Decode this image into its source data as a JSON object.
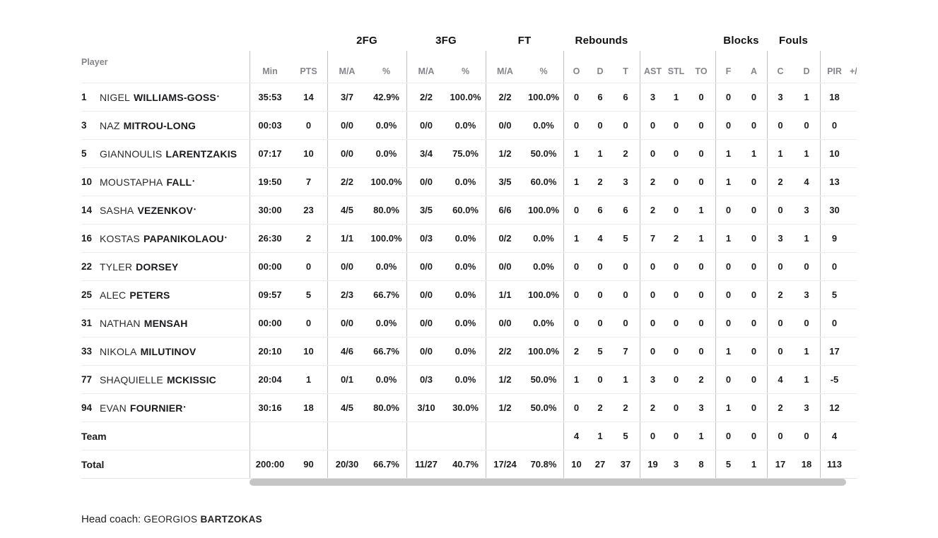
{
  "group_headers": {
    "fg2": "2FG",
    "fg3": "3FG",
    "ft": "FT",
    "rebounds": "Rebounds",
    "blocks": "Blocks",
    "fouls": "Fouls"
  },
  "columns": {
    "player": "Player",
    "min": "Min",
    "pts": "PTS",
    "ma": "M/A",
    "pct": "%",
    "o": "O",
    "d": "D",
    "t": "T",
    "ast": "AST",
    "stl": "STL",
    "to": "TO",
    "f": "F",
    "a": "A",
    "c": "C",
    "d2": "D",
    "pir": "PIR",
    "plus": "+/"
  },
  "starter_mark": "•",
  "players": [
    {
      "num": "1",
      "first": "NIGEL",
      "last": "WILLIAMS-GOSS",
      "starter": true,
      "min": "35:53",
      "pts": "14",
      "fg2_ma": "3/7",
      "fg2_pct": "42.9%",
      "fg3_ma": "2/2",
      "fg3_pct": "100.0%",
      "ft_ma": "2/2",
      "ft_pct": "100.0%",
      "reb_o": "0",
      "reb_d": "6",
      "reb_t": "6",
      "ast": "3",
      "stl": "1",
      "to": "0",
      "blk_f": "0",
      "blk_a": "0",
      "foul_c": "3",
      "foul_d": "1",
      "pir": "18"
    },
    {
      "num": "3",
      "first": "NAZ",
      "last": "MITROU-LONG",
      "starter": false,
      "min": "00:03",
      "pts": "0",
      "fg2_ma": "0/0",
      "fg2_pct": "0.0%",
      "fg3_ma": "0/0",
      "fg3_pct": "0.0%",
      "ft_ma": "0/0",
      "ft_pct": "0.0%",
      "reb_o": "0",
      "reb_d": "0",
      "reb_t": "0",
      "ast": "0",
      "stl": "0",
      "to": "0",
      "blk_f": "0",
      "blk_a": "0",
      "foul_c": "0",
      "foul_d": "0",
      "pir": "0"
    },
    {
      "num": "5",
      "first": "GIANNOULIS",
      "last": "LARENTZAKIS",
      "starter": false,
      "min": "07:17",
      "pts": "10",
      "fg2_ma": "0/0",
      "fg2_pct": "0.0%",
      "fg3_ma": "3/4",
      "fg3_pct": "75.0%",
      "ft_ma": "1/2",
      "ft_pct": "50.0%",
      "reb_o": "1",
      "reb_d": "1",
      "reb_t": "2",
      "ast": "0",
      "stl": "0",
      "to": "0",
      "blk_f": "1",
      "blk_a": "1",
      "foul_c": "1",
      "foul_d": "1",
      "pir": "10"
    },
    {
      "num": "10",
      "first": "MOUSTAPHA",
      "last": "FALL",
      "starter": true,
      "min": "19:50",
      "pts": "7",
      "fg2_ma": "2/2",
      "fg2_pct": "100.0%",
      "fg3_ma": "0/0",
      "fg3_pct": "0.0%",
      "ft_ma": "3/5",
      "ft_pct": "60.0%",
      "reb_o": "1",
      "reb_d": "2",
      "reb_t": "3",
      "ast": "2",
      "stl": "0",
      "to": "0",
      "blk_f": "1",
      "blk_a": "0",
      "foul_c": "2",
      "foul_d": "4",
      "pir": "13"
    },
    {
      "num": "14",
      "first": "SASHA",
      "last": "VEZENKOV",
      "starter": true,
      "min": "30:00",
      "pts": "23",
      "fg2_ma": "4/5",
      "fg2_pct": "80.0%",
      "fg3_ma": "3/5",
      "fg3_pct": "60.0%",
      "ft_ma": "6/6",
      "ft_pct": "100.0%",
      "reb_o": "0",
      "reb_d": "6",
      "reb_t": "6",
      "ast": "2",
      "stl": "0",
      "to": "1",
      "blk_f": "0",
      "blk_a": "0",
      "foul_c": "0",
      "foul_d": "3",
      "pir": "30"
    },
    {
      "num": "16",
      "first": "KOSTAS",
      "last": "PAPANIKOLAOU",
      "starter": true,
      "min": "26:30",
      "pts": "2",
      "fg2_ma": "1/1",
      "fg2_pct": "100.0%",
      "fg3_ma": "0/3",
      "fg3_pct": "0.0%",
      "ft_ma": "0/2",
      "ft_pct": "0.0%",
      "reb_o": "1",
      "reb_d": "4",
      "reb_t": "5",
      "ast": "7",
      "stl": "2",
      "to": "1",
      "blk_f": "1",
      "blk_a": "0",
      "foul_c": "3",
      "foul_d": "1",
      "pir": "9"
    },
    {
      "num": "22",
      "first": "TYLER",
      "last": "DORSEY",
      "starter": false,
      "min": "00:00",
      "pts": "0",
      "fg2_ma": "0/0",
      "fg2_pct": "0.0%",
      "fg3_ma": "0/0",
      "fg3_pct": "0.0%",
      "ft_ma": "0/0",
      "ft_pct": "0.0%",
      "reb_o": "0",
      "reb_d": "0",
      "reb_t": "0",
      "ast": "0",
      "stl": "0",
      "to": "0",
      "blk_f": "0",
      "blk_a": "0",
      "foul_c": "0",
      "foul_d": "0",
      "pir": "0"
    },
    {
      "num": "25",
      "first": "ALEC",
      "last": "PETERS",
      "starter": false,
      "min": "09:57",
      "pts": "5",
      "fg2_ma": "2/3",
      "fg2_pct": "66.7%",
      "fg3_ma": "0/0",
      "fg3_pct": "0.0%",
      "ft_ma": "1/1",
      "ft_pct": "100.0%",
      "reb_o": "0",
      "reb_d": "0",
      "reb_t": "0",
      "ast": "0",
      "stl": "0",
      "to": "0",
      "blk_f": "0",
      "blk_a": "0",
      "foul_c": "2",
      "foul_d": "3",
      "pir": "5"
    },
    {
      "num": "31",
      "first": "NATHAN",
      "last": "MENSAH",
      "starter": false,
      "min": "00:00",
      "pts": "0",
      "fg2_ma": "0/0",
      "fg2_pct": "0.0%",
      "fg3_ma": "0/0",
      "fg3_pct": "0.0%",
      "ft_ma": "0/0",
      "ft_pct": "0.0%",
      "reb_o": "0",
      "reb_d": "0",
      "reb_t": "0",
      "ast": "0",
      "stl": "0",
      "to": "0",
      "blk_f": "0",
      "blk_a": "0",
      "foul_c": "0",
      "foul_d": "0",
      "pir": "0"
    },
    {
      "num": "33",
      "first": "NIKOLA",
      "last": "MILUTINOV",
      "starter": false,
      "min": "20:10",
      "pts": "10",
      "fg2_ma": "4/6",
      "fg2_pct": "66.7%",
      "fg3_ma": "0/0",
      "fg3_pct": "0.0%",
      "ft_ma": "2/2",
      "ft_pct": "100.0%",
      "reb_o": "2",
      "reb_d": "5",
      "reb_t": "7",
      "ast": "0",
      "stl": "0",
      "to": "0",
      "blk_f": "1",
      "blk_a": "0",
      "foul_c": "0",
      "foul_d": "1",
      "pir": "17"
    },
    {
      "num": "77",
      "first": "SHAQUIELLE",
      "last": "MCKISSIC",
      "starter": false,
      "min": "20:04",
      "pts": "1",
      "fg2_ma": "0/1",
      "fg2_pct": "0.0%",
      "fg3_ma": "0/3",
      "fg3_pct": "0.0%",
      "ft_ma": "1/2",
      "ft_pct": "50.0%",
      "reb_o": "1",
      "reb_d": "0",
      "reb_t": "1",
      "ast": "3",
      "stl": "0",
      "to": "2",
      "blk_f": "0",
      "blk_a": "0",
      "foul_c": "4",
      "foul_d": "1",
      "pir": "-5"
    },
    {
      "num": "94",
      "first": "EVAN",
      "last": "FOURNIER",
      "starter": true,
      "min": "30:16",
      "pts": "18",
      "fg2_ma": "4/5",
      "fg2_pct": "80.0%",
      "fg3_ma": "3/10",
      "fg3_pct": "30.0%",
      "ft_ma": "1/2",
      "ft_pct": "50.0%",
      "reb_o": "0",
      "reb_d": "2",
      "reb_t": "2",
      "ast": "2",
      "stl": "0",
      "to": "3",
      "blk_f": "1",
      "blk_a": "0",
      "foul_c": "2",
      "foul_d": "3",
      "pir": "12"
    }
  ],
  "team_row": {
    "label": "Team",
    "min": "",
    "pts": "",
    "fg2_ma": "",
    "fg2_pct": "",
    "fg3_ma": "",
    "fg3_pct": "",
    "ft_ma": "",
    "ft_pct": "",
    "reb_o": "4",
    "reb_d": "1",
    "reb_t": "5",
    "ast": "0",
    "stl": "0",
    "to": "1",
    "blk_f": "0",
    "blk_a": "0",
    "foul_c": "0",
    "foul_d": "0",
    "pir": "4"
  },
  "total_row": {
    "label": "Total",
    "min": "200:00",
    "pts": "90",
    "fg2_ma": "20/30",
    "fg2_pct": "66.7%",
    "fg3_ma": "11/27",
    "fg3_pct": "40.7%",
    "ft_ma": "17/24",
    "ft_pct": "70.8%",
    "reb_o": "10",
    "reb_d": "27",
    "reb_t": "37",
    "ast": "19",
    "stl": "3",
    "to": "8",
    "blk_f": "5",
    "blk_a": "1",
    "foul_c": "17",
    "foul_d": "18",
    "pir": "113"
  },
  "footer": {
    "head_coach_label": "Head coach:",
    "coach_first": "GEORGIOS",
    "coach_last": "BARTZOKAS"
  }
}
